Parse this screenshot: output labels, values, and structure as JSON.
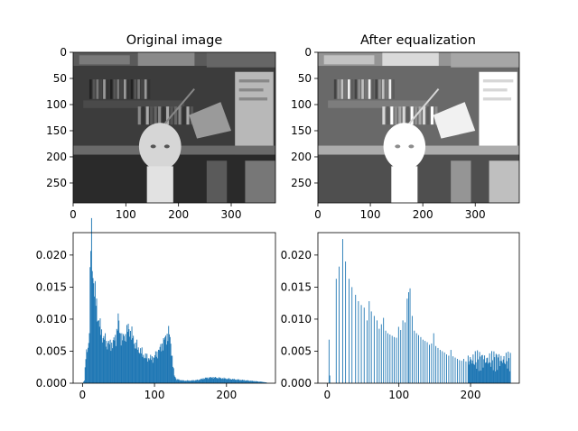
{
  "figure": {
    "left_title": "Original image",
    "right_title": "After equalization"
  },
  "chart_data": [
    {
      "type": "image",
      "title": "Original image",
      "image_width": 384,
      "image_height": 288,
      "colormap": "gray",
      "xlim": [
        0,
        384
      ],
      "ylim": [
        288,
        0
      ],
      "xticks": [
        "0",
        "100",
        "200",
        "300"
      ],
      "yticks": [
        "0",
        "50",
        "100",
        "150",
        "200",
        "250"
      ]
    },
    {
      "type": "image",
      "title": "After equalization",
      "image_width": 384,
      "image_height": 288,
      "colormap": "gray",
      "xlim": [
        0,
        384
      ],
      "ylim": [
        288,
        0
      ],
      "xticks": [
        "0",
        "100",
        "200",
        "300"
      ],
      "yticks": [
        "0",
        "50",
        "100",
        "150",
        "200",
        "250"
      ]
    },
    {
      "type": "bar",
      "subtype": "histogram",
      "color": "#1f77b4",
      "bins": 256,
      "xlim": [
        -13,
        268
      ],
      "ylim": [
        0,
        0.0235
      ],
      "xticks": [
        "0",
        "100",
        "200"
      ],
      "yticks": [
        "0.000",
        "0.005",
        "0.010",
        "0.015",
        "0.020"
      ],
      "profile": [
        [
          0,
          0.0
        ],
        [
          2,
          0.0005
        ],
        [
          4,
          0.004
        ],
        [
          6,
          0.005
        ],
        [
          8,
          0.0065
        ],
        [
          9,
          0.009
        ],
        [
          10,
          0.0158
        ],
        [
          11,
          0.0215
        ],
        [
          12,
          0.0223
        ],
        [
          13,
          0.019
        ],
        [
          15,
          0.016
        ],
        [
          17,
          0.0135
        ],
        [
          20,
          0.011
        ],
        [
          24,
          0.0085
        ],
        [
          27,
          0.0075
        ],
        [
          30,
          0.0068
        ],
        [
          34,
          0.0062
        ],
        [
          38,
          0.006
        ],
        [
          42,
          0.0063
        ],
        [
          46,
          0.0072
        ],
        [
          49,
          0.0098
        ],
        [
          52,
          0.0075
        ],
        [
          56,
          0.0068
        ],
        [
          60,
          0.0078
        ],
        [
          64,
          0.0085
        ],
        [
          68,
          0.0075
        ],
        [
          72,
          0.0062
        ],
        [
          76,
          0.0055
        ],
        [
          80,
          0.005
        ],
        [
          84,
          0.0044
        ],
        [
          88,
          0.004
        ],
        [
          92,
          0.0039
        ],
        [
          96,
          0.0038
        ],
        [
          100,
          0.0042
        ],
        [
          104,
          0.0048
        ],
        [
          108,
          0.0055
        ],
        [
          112,
          0.0064
        ],
        [
          116,
          0.0072
        ],
        [
          119,
          0.0078
        ],
        [
          121,
          0.007
        ],
        [
          123,
          0.0052
        ],
        [
          125,
          0.0028
        ],
        [
          127,
          0.0012
        ],
        [
          130,
          0.0006
        ],
        [
          140,
          0.0004
        ],
        [
          150,
          0.0004
        ],
        [
          160,
          0.0005
        ],
        [
          170,
          0.0008
        ],
        [
          180,
          0.0009
        ],
        [
          190,
          0.0008
        ],
        [
          200,
          0.0007
        ],
        [
          210,
          0.0006
        ],
        [
          220,
          0.0005
        ],
        [
          230,
          0.0004
        ],
        [
          240,
          0.0003
        ],
        [
          250,
          0.0002
        ],
        [
          255,
          0.0001
        ]
      ]
    },
    {
      "type": "bar",
      "subtype": "histogram",
      "color": "#1f77b4",
      "bins": 256,
      "xlim": [
        -13,
        268
      ],
      "ylim": [
        0,
        0.0235
      ],
      "xticks": [
        "0",
        "100",
        "200"
      ],
      "yticks": [
        "0.000",
        "0.005",
        "0.010",
        "0.015",
        "0.020"
      ],
      "spikes": [
        [
          2,
          0.0068
        ],
        [
          3,
          0.0012
        ],
        [
          12,
          0.0163
        ],
        [
          16,
          0.0182
        ],
        [
          21,
          0.0225
        ],
        [
          25,
          0.019
        ],
        [
          30,
          0.0163
        ],
        [
          34,
          0.015
        ],
        [
          39,
          0.0138
        ],
        [
          43,
          0.0128
        ],
        [
          47,
          0.0122
        ],
        [
          51,
          0.0118
        ],
        [
          55,
          0.0098
        ],
        [
          58,
          0.0128
        ],
        [
          61,
          0.0112
        ],
        [
          65,
          0.0105
        ],
        [
          69,
          0.0098
        ],
        [
          72,
          0.0085
        ],
        [
          75,
          0.0092
        ],
        [
          78,
          0.0102
        ],
        [
          81,
          0.0082
        ],
        [
          84,
          0.0078
        ],
        [
          87,
          0.0076
        ],
        [
          90,
          0.0074
        ],
        [
          93,
          0.0072
        ],
        [
          96,
          0.0071
        ],
        [
          99,
          0.0088
        ],
        [
          102,
          0.0083
        ],
        [
          105,
          0.0098
        ],
        [
          108,
          0.0095
        ],
        [
          111,
          0.0132
        ],
        [
          113,
          0.0142
        ],
        [
          115,
          0.0148
        ],
        [
          118,
          0.0105
        ],
        [
          121,
          0.0082
        ],
        [
          124,
          0.0078
        ],
        [
          127,
          0.0075
        ],
        [
          130,
          0.0072
        ],
        [
          133,
          0.0068
        ],
        [
          136,
          0.0066
        ],
        [
          139,
          0.0064
        ],
        [
          142,
          0.006
        ],
        [
          145,
          0.0062
        ],
        [
          148,
          0.0078
        ],
        [
          151,
          0.0058
        ],
        [
          154,
          0.0055
        ],
        [
          157,
          0.0052
        ],
        [
          160,
          0.005
        ],
        [
          163,
          0.0048
        ],
        [
          166,
          0.0045
        ],
        [
          169,
          0.0043
        ],
        [
          172,
          0.0052
        ],
        [
          175,
          0.0042
        ],
        [
          178,
          0.004
        ],
        [
          181,
          0.0038
        ],
        [
          184,
          0.0036
        ],
        [
          187,
          0.0035
        ],
        [
          190,
          0.0038
        ],
        [
          193,
          0.0034
        ],
        [
          196,
          0.0033
        ]
      ],
      "dense_start": 196,
      "dense_end": 255,
      "dense_level": 0.0045
    }
  ]
}
